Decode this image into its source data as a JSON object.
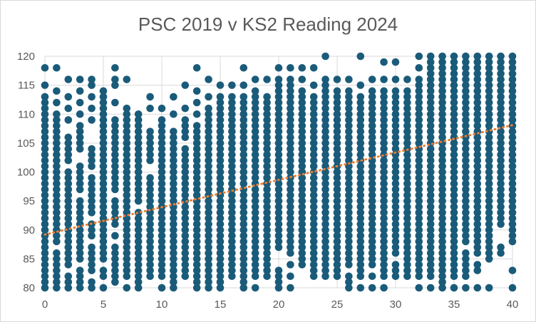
{
  "chart_data": {
    "type": "scatter",
    "title": "PSC 2019 v KS2 Reading 2024",
    "xlabel": "",
    "ylabel": "",
    "xlim": [
      0,
      40
    ],
    "ylim": [
      80,
      120
    ],
    "x_ticks": [
      0,
      5,
      10,
      15,
      20,
      25,
      30,
      35,
      40
    ],
    "y_ticks": [
      80,
      85,
      90,
      95,
      100,
      105,
      110,
      115,
      120
    ],
    "grid": true,
    "legend": "none",
    "marker_color": "#1a5b7a",
    "trendline": {
      "style": "dotted",
      "color": "#ed7d31",
      "x": [
        0,
        40
      ],
      "y": [
        89.2,
        108.1
      ]
    },
    "series": [
      {
        "values": [
          {
            "x": 0,
            "min": 80,
            "max": 112,
            "gaps": [],
            "extra": [
              113,
              115,
              118
            ]
          },
          {
            "x": 1,
            "min": 80,
            "max": 110,
            "gaps": [
              87
            ],
            "extra": [
              112,
              114,
              118
            ]
          },
          {
            "x": 2,
            "min": 80,
            "max": 106,
            "gaps": [
              83,
              101,
              108
            ],
            "extra": [
              109,
              111,
              113,
              116
            ]
          },
          {
            "x": 3,
            "min": 80,
            "max": 108,
            "gaps": [
              84,
              96,
              102,
              103
            ],
            "extra": [
              110,
              112,
              114,
              116
            ]
          },
          {
            "x": 4,
            "min": 80,
            "max": 104,
            "gaps": [
              82,
              88,
              92,
              100
            ],
            "extra": [
              109,
              111,
              113,
              115,
              116
            ]
          },
          {
            "x": 5,
            "min": 80,
            "max": 113,
            "gaps": [
              81,
              84
            ],
            "extra": [
              114
            ]
          },
          {
            "x": 6,
            "min": 81,
            "max": 108,
            "gaps": [
              88,
              90,
              96
            ],
            "extra": [
              109,
              112,
              115,
              116,
              118
            ]
          },
          {
            "x": 7,
            "min": 80,
            "max": 110,
            "gaps": [
              81
            ],
            "extra": [
              111,
              116
            ]
          },
          {
            "x": 8,
            "min": 80,
            "max": 110,
            "gaps": [
              94
            ],
            "extra": []
          },
          {
            "x": 9,
            "min": 82,
            "max": 107,
            "gaps": [
              100,
              101
            ],
            "extra": [
              111,
              113
            ]
          },
          {
            "x": 10,
            "min": 80,
            "max": 109,
            "gaps": [
              81
            ],
            "extra": [
              111
            ]
          },
          {
            "x": 11,
            "min": 80,
            "max": 107,
            "gaps": [],
            "extra": [
              110,
              113
            ]
          },
          {
            "x": 12,
            "min": 82,
            "max": 109,
            "gaps": [
              105
            ],
            "extra": [
              111,
              115
            ]
          },
          {
            "x": 13,
            "min": 80,
            "max": 108,
            "gaps": [],
            "extra": [
              110,
              112,
              114,
              118
            ]
          },
          {
            "x": 14,
            "min": 80,
            "max": 111,
            "gaps": [],
            "extra": [
              113,
              116
            ]
          },
          {
            "x": 15,
            "min": 80,
            "max": 113,
            "gaps": [],
            "extra": [
              115
            ]
          },
          {
            "x": 16,
            "min": 82,
            "max": 113,
            "gaps": [],
            "extra": [
              115
            ]
          },
          {
            "x": 17,
            "min": 80,
            "max": 113,
            "gaps": [],
            "extra": [
              115,
              118
            ]
          },
          {
            "x": 18,
            "min": 80,
            "max": 114,
            "gaps": [
              81
            ],
            "extra": [
              116
            ]
          },
          {
            "x": 19,
            "min": 82,
            "max": 113,
            "gaps": [],
            "extra": [
              116
            ]
          },
          {
            "x": 20,
            "min": 80,
            "max": 115,
            "gaps": [
              84,
              85,
              86
            ],
            "extra": [
              116,
              118
            ]
          },
          {
            "x": 21,
            "min": 80,
            "max": 115,
            "gaps": [
              81,
              83,
              85
            ],
            "extra": [
              116,
              118
            ]
          },
          {
            "x": 22,
            "min": 84,
            "max": 114,
            "gaps": [],
            "extra": [
              116,
              118
            ]
          },
          {
            "x": 23,
            "min": 82,
            "max": 113,
            "gaps": [],
            "extra": [
              115,
              118
            ]
          },
          {
            "x": 24,
            "min": 82,
            "max": 115,
            "gaps": [],
            "extra": [
              116,
              120
            ]
          },
          {
            "x": 25,
            "min": 82,
            "max": 114,
            "gaps": [],
            "extra": [
              116
            ]
          },
          {
            "x": 26,
            "min": 80,
            "max": 114,
            "gaps": [
              83
            ],
            "extra": [
              116
            ]
          },
          {
            "x": 27,
            "min": 80,
            "max": 113,
            "gaps": [
              81
            ],
            "extra": [
              115,
              120
            ]
          },
          {
            "x": 28,
            "min": 80,
            "max": 114,
            "gaps": [
              81,
              83
            ],
            "extra": [
              116
            ]
          },
          {
            "x": 29,
            "min": 80,
            "max": 114,
            "gaps": [
              81
            ],
            "extra": [
              116,
              119
            ]
          },
          {
            "x": 30,
            "min": 82,
            "max": 114,
            "gaps": [
              85
            ],
            "extra": [
              116,
              119
            ]
          },
          {
            "x": 31,
            "min": 82,
            "max": 114,
            "gaps": [],
            "extra": [
              116
            ]
          },
          {
            "x": 32,
            "min": 80,
            "max": 116,
            "gaps": [
              81
            ],
            "extra": [
              118,
              120
            ]
          },
          {
            "x": 33,
            "min": 80,
            "max": 120,
            "gaps": [
              81
            ],
            "extra": []
          },
          {
            "x": 34,
            "min": 80,
            "max": 120,
            "gaps": [],
            "extra": []
          },
          {
            "x": 35,
            "min": 80,
            "max": 120,
            "gaps": [
              81
            ],
            "extra": []
          },
          {
            "x": 36,
            "min": 80,
            "max": 120,
            "gaps": [
              81,
              87
            ],
            "extra": []
          },
          {
            "x": 37,
            "min": 80,
            "max": 120,
            "gaps": [
              81,
              82,
              85
            ],
            "extra": []
          },
          {
            "x": 38,
            "min": 80,
            "max": 120,
            "gaps": [
              81,
              82,
              83,
              84
            ],
            "extra": []
          },
          {
            "x": 39,
            "min": 86,
            "max": 120,
            "gaps": [
              88,
              89,
              90
            ],
            "extra": []
          },
          {
            "x": 40,
            "min": 88,
            "max": 120,
            "gaps": [],
            "extra": [
              80,
              83
            ]
          }
        ]
      }
    ]
  }
}
